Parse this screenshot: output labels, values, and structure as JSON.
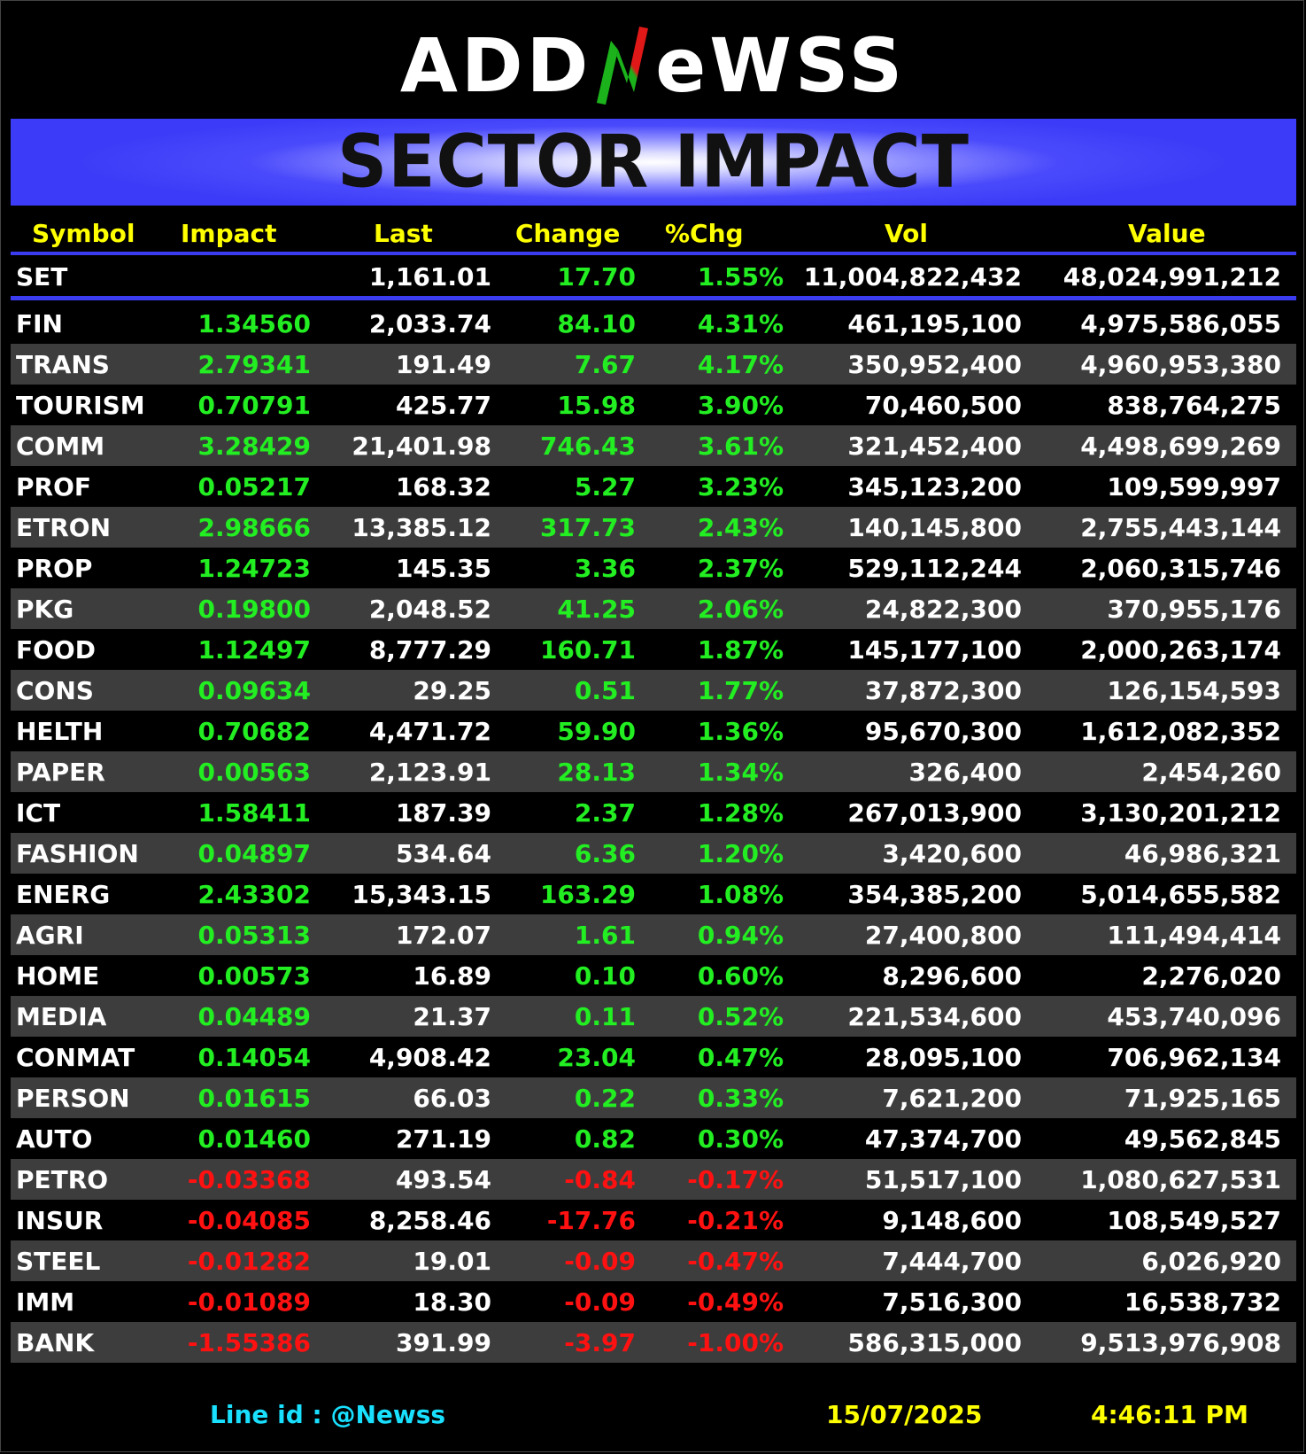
{
  "logo": {
    "text_before": "ADD",
    "text_n": "N",
    "text_after": "eWSS",
    "n_colors": [
      "#1bb21b",
      "#e01818"
    ]
  },
  "banner": {
    "title": "SECTOR IMPACT"
  },
  "table": {
    "headers": {
      "symbol": "Symbol",
      "impact": "Impact",
      "last": "Last",
      "change": "Change",
      "pct": "%Chg",
      "vol": "Vol",
      "value": "Value"
    },
    "set": {
      "symbol": "SET",
      "last": "1,161.01",
      "change": "17.70",
      "pct": "1.55%",
      "vol": "11,004,822,432",
      "value": "48,024,991,212"
    },
    "rows": [
      {
        "symbol": "FIN",
        "impact": "1.34560",
        "last": "2,033.74",
        "change": "84.10",
        "pct": "4.31%",
        "vol": "461,195,100",
        "value": "4,975,586,055",
        "dir": "up"
      },
      {
        "symbol": "TRANS",
        "impact": "2.79341",
        "last": "191.49",
        "change": "7.67",
        "pct": "4.17%",
        "vol": "350,952,400",
        "value": "4,960,953,380",
        "dir": "up"
      },
      {
        "symbol": "TOURISM",
        "impact": "0.70791",
        "last": "425.77",
        "change": "15.98",
        "pct": "3.90%",
        "vol": "70,460,500",
        "value": "838,764,275",
        "dir": "up"
      },
      {
        "symbol": "COMM",
        "impact": "3.28429",
        "last": "21,401.98",
        "change": "746.43",
        "pct": "3.61%",
        "vol": "321,452,400",
        "value": "4,498,699,269",
        "dir": "up"
      },
      {
        "symbol": "PROF",
        "impact": "0.05217",
        "last": "168.32",
        "change": "5.27",
        "pct": "3.23%",
        "vol": "345,123,200",
        "value": "109,599,997",
        "dir": "up"
      },
      {
        "symbol": "ETRON",
        "impact": "2.98666",
        "last": "13,385.12",
        "change": "317.73",
        "pct": "2.43%",
        "vol": "140,145,800",
        "value": "2,755,443,144",
        "dir": "up"
      },
      {
        "symbol": "PROP",
        "impact": "1.24723",
        "last": "145.35",
        "change": "3.36",
        "pct": "2.37%",
        "vol": "529,112,244",
        "value": "2,060,315,746",
        "dir": "up"
      },
      {
        "symbol": "PKG",
        "impact": "0.19800",
        "last": "2,048.52",
        "change": "41.25",
        "pct": "2.06%",
        "vol": "24,822,300",
        "value": "370,955,176",
        "dir": "up"
      },
      {
        "symbol": "FOOD",
        "impact": "1.12497",
        "last": "8,777.29",
        "change": "160.71",
        "pct": "1.87%",
        "vol": "145,177,100",
        "value": "2,000,263,174",
        "dir": "up"
      },
      {
        "symbol": "CONS",
        "impact": "0.09634",
        "last": "29.25",
        "change": "0.51",
        "pct": "1.77%",
        "vol": "37,872,300",
        "value": "126,154,593",
        "dir": "up"
      },
      {
        "symbol": "HELTH",
        "impact": "0.70682",
        "last": "4,471.72",
        "change": "59.90",
        "pct": "1.36%",
        "vol": "95,670,300",
        "value": "1,612,082,352",
        "dir": "up"
      },
      {
        "symbol": "PAPER",
        "impact": "0.00563",
        "last": "2,123.91",
        "change": "28.13",
        "pct": "1.34%",
        "vol": "326,400",
        "value": "2,454,260",
        "dir": "up"
      },
      {
        "symbol": "ICT",
        "impact": "1.58411",
        "last": "187.39",
        "change": "2.37",
        "pct": "1.28%",
        "vol": "267,013,900",
        "value": "3,130,201,212",
        "dir": "up"
      },
      {
        "symbol": "FASHION",
        "impact": "0.04897",
        "last": "534.64",
        "change": "6.36",
        "pct": "1.20%",
        "vol": "3,420,600",
        "value": "46,986,321",
        "dir": "up"
      },
      {
        "symbol": "ENERG",
        "impact": "2.43302",
        "last": "15,343.15",
        "change": "163.29",
        "pct": "1.08%",
        "vol": "354,385,200",
        "value": "5,014,655,582",
        "dir": "up"
      },
      {
        "symbol": "AGRI",
        "impact": "0.05313",
        "last": "172.07",
        "change": "1.61",
        "pct": "0.94%",
        "vol": "27,400,800",
        "value": "111,494,414",
        "dir": "up"
      },
      {
        "symbol": "HOME",
        "impact": "0.00573",
        "last": "16.89",
        "change": "0.10",
        "pct": "0.60%",
        "vol": "8,296,600",
        "value": "2,276,020",
        "dir": "up"
      },
      {
        "symbol": "MEDIA",
        "impact": "0.04489",
        "last": "21.37",
        "change": "0.11",
        "pct": "0.52%",
        "vol": "221,534,600",
        "value": "453,740,096",
        "dir": "up"
      },
      {
        "symbol": "CONMAT",
        "impact": "0.14054",
        "last": "4,908.42",
        "change": "23.04",
        "pct": "0.47%",
        "vol": "28,095,100",
        "value": "706,962,134",
        "dir": "up"
      },
      {
        "symbol": "PERSON",
        "impact": "0.01615",
        "last": "66.03",
        "change": "0.22",
        "pct": "0.33%",
        "vol": "7,621,200",
        "value": "71,925,165",
        "dir": "up"
      },
      {
        "symbol": "AUTO",
        "impact": "0.01460",
        "last": "271.19",
        "change": "0.82",
        "pct": "0.30%",
        "vol": "47,374,700",
        "value": "49,562,845",
        "dir": "up"
      },
      {
        "symbol": "PETRO",
        "impact": "-0.03368",
        "last": "493.54",
        "change": "-0.84",
        "pct": "-0.17%",
        "vol": "51,517,100",
        "value": "1,080,627,531",
        "dir": "down"
      },
      {
        "symbol": "INSUR",
        "impact": "-0.04085",
        "last": "8,258.46",
        "change": "-17.76",
        "pct": "-0.21%",
        "vol": "9,148,600",
        "value": "108,549,527",
        "dir": "down"
      },
      {
        "symbol": "STEEL",
        "impact": "-0.01282",
        "last": "19.01",
        "change": "-0.09",
        "pct": "-0.47%",
        "vol": "7,444,700",
        "value": "6,026,920",
        "dir": "down"
      },
      {
        "symbol": "IMM",
        "impact": "-0.01089",
        "last": "18.30",
        "change": "-0.09",
        "pct": "-0.49%",
        "vol": "7,516,300",
        "value": "16,538,732",
        "dir": "down"
      },
      {
        "symbol": "BANK",
        "impact": "-1.55386",
        "last": "391.99",
        "change": "-3.97",
        "pct": "-1.00%",
        "vol": "586,315,000",
        "value": "9,513,976,908",
        "dir": "down"
      }
    ]
  },
  "footer": {
    "line_id": "Line id  : @Newss",
    "date": "15/07/2025",
    "time": "4:46:11 PM"
  },
  "colors": {
    "up": "#22ee22",
    "down": "#ff1111",
    "header": "#ffff00",
    "accent": "#3b3bf0",
    "row_alt": "#3d3d3d",
    "footer_link": "#19e0ff"
  }
}
